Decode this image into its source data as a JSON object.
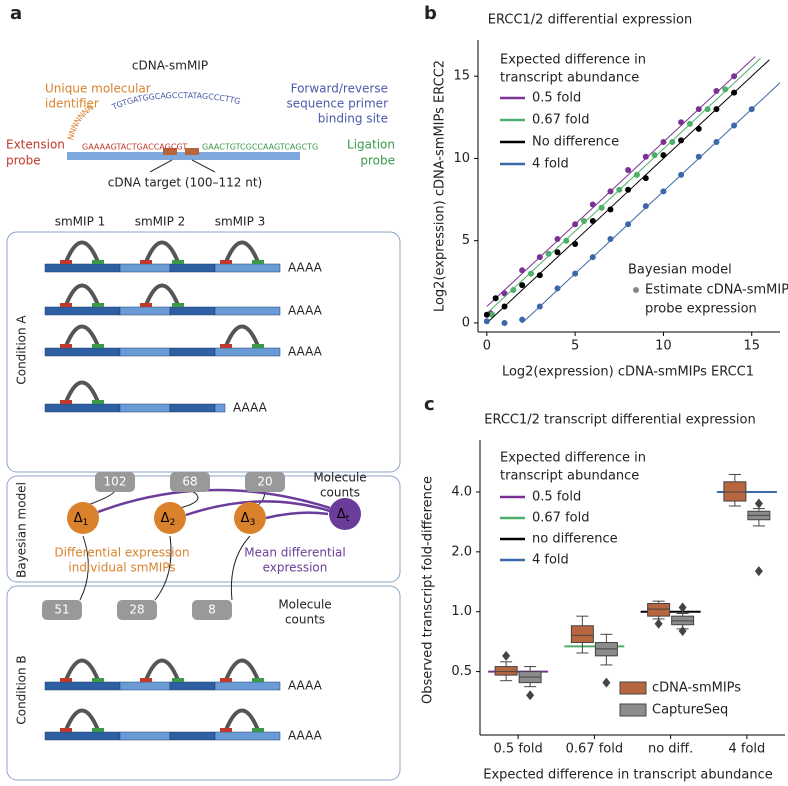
{
  "diagram": {
    "panel_label": "a",
    "title": "cDNA-smMIP",
    "umi": [
      "Unique molecular",
      "identifier"
    ],
    "umi_sequence": "NNNNNNNNN",
    "arm_sequence": "TGTGATGGCAGCCTATAGCCCTTG",
    "primer_site": [
      "Forward/reverse",
      "sequence  primer",
      "binding site"
    ],
    "extension_probe": [
      "Extension",
      "probe"
    ],
    "extension_sequence": "GAAAAGTACTGACCAGCGT",
    "ligation_probe": [
      "Ligation",
      "probe"
    ],
    "ligation_sequence": "GAACTGTCGCCAAGTCAGCTG",
    "target": "cDNA target (100–112 nt)",
    "smmips": [
      "smMIP 1",
      "smMIP 2",
      "smMIP 3"
    ],
    "poly_a": "AAAA",
    "conditions": [
      "Condition A",
      "Condition B"
    ],
    "bayes_label": "Bayesian model",
    "counts_label": [
      "Molecule",
      "counts"
    ],
    "counts_a": [
      102,
      68,
      20
    ],
    "counts_b": [
      51,
      28,
      8
    ],
    "nodes": [
      {
        "symbol": "Δ",
        "sub": "1"
      },
      {
        "symbol": "Δ",
        "sub": "2"
      },
      {
        "symbol": "Δ",
        "sub": "3"
      },
      {
        "symbol": "Δ",
        "sub": "t"
      }
    ],
    "individual_label": [
      "Differential expression",
      "individual smMIPs"
    ],
    "mean_label": [
      "Mean differential",
      "expression"
    ]
  },
  "chart_data": [
    {
      "type": "scatter",
      "panel_label": "b",
      "title": "ERCC1/2 differential expression",
      "x_label": "Log2(expression) cDNA-smMIPs ERCC1",
      "y_label": "Log2(expression) cDNA-smMIPs ERCC2",
      "xlim": [
        -0.5,
        16.6
      ],
      "ylim": [
        -0.55,
        17.2
      ],
      "xticks": [
        0,
        5,
        10,
        15
      ],
      "yticks": [
        0,
        5,
        10,
        15
      ],
      "legend_title": [
        "Expected difference in",
        "transcript abundance"
      ],
      "series": [
        {
          "name": "0.5 fold",
          "color": "#7b3294",
          "fit_x": [
            0,
            15.2
          ],
          "fit_y": [
            1,
            16.2
          ],
          "x": [
            0.2,
            1,
            2,
            3,
            4,
            5,
            6,
            7,
            8,
            9,
            10,
            11,
            12,
            13,
            14
          ],
          "values": [
            0.6,
            1.8,
            3.2,
            4,
            5.1,
            6,
            7.2,
            8,
            9.3,
            10.1,
            11,
            12.2,
            13,
            14.1,
            15
          ]
        },
        {
          "name": "0.67 fold",
          "color": "#4daf6a",
          "fit_x": [
            0,
            15.5
          ],
          "fit_y": [
            0.58,
            16.08
          ],
          "x": [
            0.3,
            1.5,
            2.5,
            3.5,
            4.5,
            5.5,
            6.5,
            7.5,
            8.5,
            9.5,
            10.5,
            11.5,
            12.5,
            13.5
          ],
          "values": [
            0.5,
            2,
            3,
            4.2,
            5,
            6.2,
            7,
            8.1,
            9,
            10.2,
            11,
            12.1,
            13,
            14.2
          ]
        },
        {
          "name": "No difference",
          "color": "#000000",
          "fit_x": [
            0,
            16
          ],
          "fit_y": [
            0,
            16
          ],
          "x": [
            0,
            0.5,
            1,
            2,
            3,
            4,
            5,
            6,
            7,
            8,
            9,
            10,
            11,
            12,
            13,
            14
          ],
          "values": [
            0.5,
            1.5,
            1,
            2.3,
            2.9,
            4.3,
            4.8,
            6.2,
            6.9,
            8.1,
            8.8,
            10.2,
            11.1,
            11.8,
            13,
            14
          ]
        },
        {
          "name": "4 fold",
          "color": "#3a68a8",
          "fit_x": [
            2,
            16.6
          ],
          "fit_y": [
            0,
            14.6
          ],
          "x": [
            0,
            1,
            2,
            3,
            4,
            5,
            6,
            7,
            8,
            9,
            10,
            11,
            12,
            13,
            14,
            15
          ],
          "values": [
            0.1,
            0,
            0.2,
            1,
            2.1,
            3,
            4,
            5.1,
            6,
            7.1,
            8,
            9,
            10.1,
            11,
            12,
            13
          ]
        }
      ],
      "model_legend": {
        "title": "Bayesian model",
        "label": [
          "Estimate cDNA-smMIP",
          "probe expression"
        ],
        "color": "#888888"
      }
    },
    {
      "type": "box",
      "panel_label": "c",
      "title": "ERCC1/2 transcript differential expression",
      "x_label": "Expected difference in transcript abundance",
      "y_label": "Observed transcript fold-difference",
      "log_y": true,
      "ylim": [
        0.24,
        7.3
      ],
      "yticks": [
        0.5,
        {
          "value": 1,
          "label": "1.0"
        },
        {
          "value": 2,
          "label": "2.0"
        },
        {
          "value": 4,
          "label": "4.0"
        }
      ],
      "categories": [
        "0.5 fold",
        "0.67 fold",
        "no diff.",
        "4 fold"
      ],
      "legend_title": [
        "Expected difference in",
        "transcript abundance"
      ],
      "expected": [
        {
          "name": "0.5 fold",
          "color": "#7b3294",
          "value": 0.5
        },
        {
          "name": "0.67 fold",
          "color": "#4daf6a",
          "value": 0.67
        },
        {
          "name": "no difference",
          "color": "#000000",
          "value": 1
        },
        {
          "name": "4 fold",
          "color": "#3a68a8",
          "value": 4
        }
      ],
      "series": [
        {
          "name": "cDNA-smMIPs",
          "color": "#b8663f",
          "boxes": [
            {
              "whislo": 0.45,
              "q1": 0.48,
              "med": 0.5,
              "q3": 0.53,
              "whishi": 0.56,
              "fliers": [
                0.6
              ]
            },
            {
              "whislo": 0.62,
              "q1": 0.7,
              "med": 0.76,
              "q3": 0.85,
              "whishi": 0.95,
              "fliers": []
            },
            {
              "whislo": 0.92,
              "q1": 0.95,
              "med": 1.03,
              "q3": 1.1,
              "whishi": 1.13,
              "fliers": [
                0.87
              ]
            },
            {
              "whislo": 3.4,
              "q1": 3.6,
              "med": 4,
              "q3": 4.5,
              "whishi": 4.9,
              "fliers": []
            }
          ]
        },
        {
          "name": "CaptureSeq",
          "color": "#8c8c8c",
          "boxes": [
            {
              "whislo": 0.42,
              "q1": 0.44,
              "med": 0.47,
              "q3": 0.5,
              "whishi": 0.53,
              "fliers": [
                0.38
              ]
            },
            {
              "whislo": 0.54,
              "q1": 0.6,
              "med": 0.65,
              "q3": 0.7,
              "whishi": 0.77,
              "fliers": [
                0.44
              ]
            },
            {
              "whislo": 0.82,
              "q1": 0.86,
              "med": 0.9,
              "q3": 0.95,
              "whishi": 0.98,
              "fliers": [
                0.8,
                1.05
              ]
            },
            {
              "whislo": 2.7,
              "q1": 2.9,
              "med": 3.05,
              "q3": 3.2,
              "whishi": 3.3,
              "fliers": [
                3.5,
                1.6
              ]
            }
          ]
        }
      ]
    }
  ]
}
